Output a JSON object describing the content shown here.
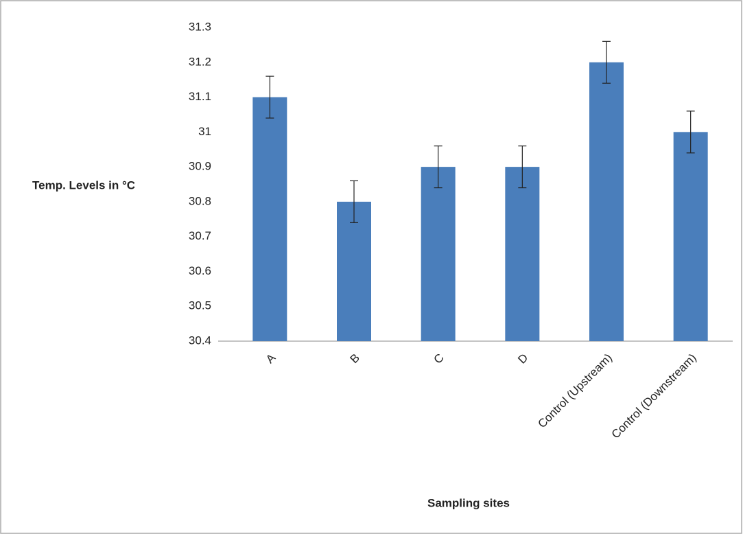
{
  "chart_data": {
    "type": "bar",
    "y_label": "Temp. Levels in °C",
    "x_label": "Sampling sites",
    "categories": [
      "A",
      "B",
      "C",
      "D",
      "Control (Upstream)",
      "Control (Downstream)"
    ],
    "values": [
      31.1,
      30.8,
      30.9,
      30.9,
      31.2,
      31.0
    ],
    "errors": [
      0.06,
      0.06,
      0.06,
      0.06,
      0.06,
      0.06
    ],
    "color": "#4a7ebb",
    "ylim": [
      30.4,
      31.3
    ],
    "yticks": [
      30.4,
      30.5,
      30.6,
      30.7,
      30.8,
      30.9,
      31,
      31.1,
      31.2,
      31.3
    ],
    "grid": false
  }
}
